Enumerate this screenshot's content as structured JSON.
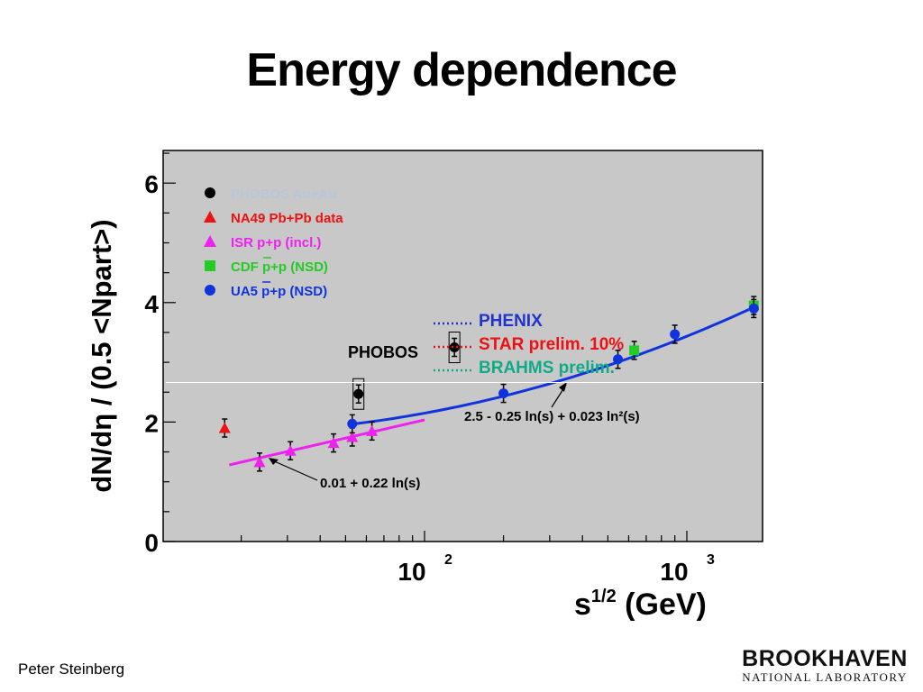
{
  "slide": {
    "title": "Energy dependence",
    "author": "Peter Steinberg",
    "logo_line1": "BROOKHAVEN",
    "logo_line2": "NATIONAL LABORATORY"
  },
  "chart_data": {
    "type": "scatter",
    "xlabel": "s^1/2 (GeV)",
    "ylabel": "dN/dη / (0.5 <Npart>)",
    "xscale": "log",
    "xlim": [
      10,
      2000
    ],
    "ylim": [
      0,
      6.5
    ],
    "x_tick_labels": [
      "10^2",
      "10^3"
    ],
    "y_tick_labels": [
      "0",
      "2",
      "4",
      "6"
    ],
    "grid": false,
    "legend_position": "top-left",
    "background": "#c8c8c8",
    "series": [
      {
        "name": "PHOBOS Au+Au",
        "marker": "circle",
        "color": "#000000",
        "points": [
          [
            56,
            2.47
          ],
          [
            130,
            3.25
          ]
        ],
        "boxed": true
      },
      {
        "name": "NA49 Pb+Pb data",
        "marker": "triangle",
        "color": "#ee1111",
        "points": [
          [
            17.3,
            1.9
          ]
        ]
      },
      {
        "name": "ISR p+p (incl.)",
        "marker": "triangle",
        "color": "#ee22ee",
        "points": [
          [
            23.5,
            1.33
          ],
          [
            30.8,
            1.52
          ],
          [
            45,
            1.65
          ],
          [
            53,
            1.75
          ],
          [
            63,
            1.85
          ]
        ]
      },
      {
        "name": "CDF p+p (NSD)",
        "marker": "square",
        "color": "#22cc22",
        "points": [
          [
            630,
            3.2
          ],
          [
            1800,
            3.95
          ]
        ]
      },
      {
        "name": "UA5 p+p (NSD)",
        "marker": "circle",
        "color": "#1133dd",
        "points": [
          [
            53,
            1.97
          ],
          [
            200,
            2.48
          ],
          [
            546,
            3.05
          ],
          [
            900,
            3.47
          ],
          [
            1800,
            3.9
          ]
        ]
      }
    ],
    "fits": [
      {
        "label": "0.01 + 0.22 ln(s)",
        "color": "#ee22ee",
        "range": [
          18,
          100
        ],
        "a": 0.01,
        "b": 0.22,
        "c": 0
      },
      {
        "label": "2.5 - 0.25 ln(s) + 0.023 ln²(s)",
        "color": "#1133dd",
        "range": [
          53,
          1800
        ],
        "a": 2.5,
        "b": -0.25,
        "c": 0.023
      }
    ],
    "rhic_band": {
      "phobos_label": "PHOBOS",
      "entries": [
        {
          "label": "PHENIX",
          "color": "#2233cc"
        },
        {
          "label": "STAR prelim. 10%",
          "color": "#ee1111"
        },
        {
          "label": "BRAHMS prelim.",
          "color": "#11aa88"
        }
      ]
    }
  }
}
